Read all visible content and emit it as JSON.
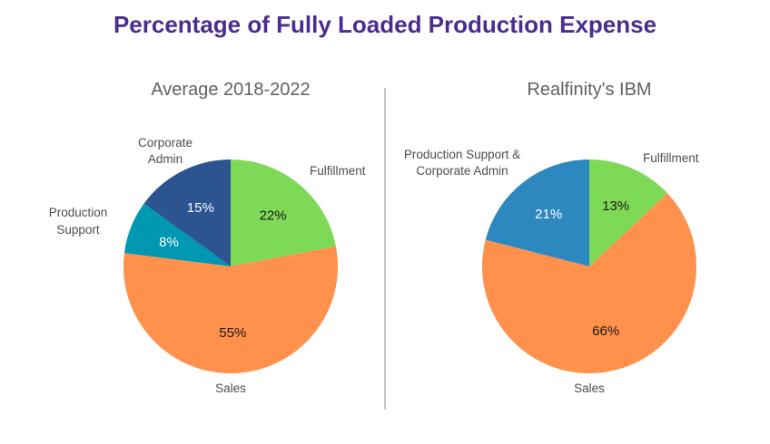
{
  "title": "Percentage of Fully Loaded Production Expense",
  "chart_data": [
    {
      "type": "pie",
      "title": "Average 2018-2022",
      "slices": [
        {
          "label": "Fulfillment",
          "value": 22,
          "value_label": "22%",
          "color": "#7ed957",
          "label_color": "#1a1a1a"
        },
        {
          "label": "Sales",
          "value": 55,
          "value_label": "55%",
          "color": "#ff914d",
          "label_color": "#1a1a1a"
        },
        {
          "label": "Production Support",
          "value": 8,
          "value_label": "8%",
          "color": "#0097b2",
          "label_color": "#ffffff"
        },
        {
          "label": "Corporate Admin",
          "value": 15,
          "value_label": "15%",
          "color": "#2c5491",
          "label_color": "#ffffff"
        }
      ]
    },
    {
      "type": "pie",
      "title": "Realfinity's IBM",
      "slices": [
        {
          "label": "Fulfillment",
          "value": 13,
          "value_label": "13%",
          "color": "#7ed957",
          "label_color": "#1a1a1a"
        },
        {
          "label": "Sales",
          "value": 66,
          "value_label": "66%",
          "color": "#ff914d",
          "label_color": "#1a1a1a"
        },
        {
          "label": "Production Support & Corporate Admin",
          "value": 21,
          "value_label": "21%",
          "color": "#2e88c0",
          "label_color": "#ffffff"
        }
      ]
    }
  ]
}
